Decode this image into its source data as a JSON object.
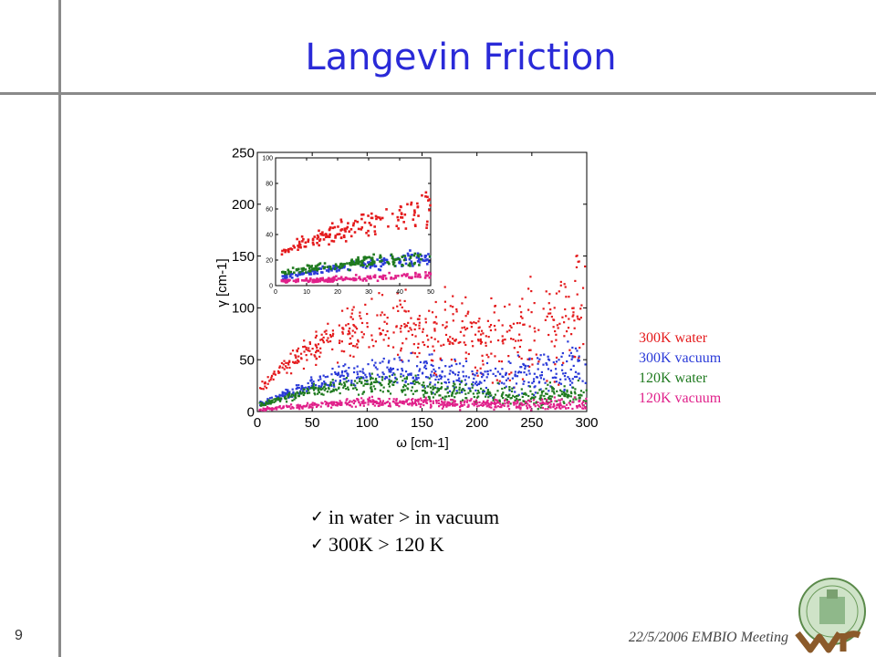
{
  "slide": {
    "title": "Langevin Friction",
    "page_number": "9",
    "footer": "22/5/2006 EMBIO Meeting",
    "logo_text": "iwr"
  },
  "legend": [
    {
      "label": "300K water",
      "color": "#e41a1c"
    },
    {
      "label": "300K vacuum",
      "color": "#2a3ad8"
    },
    {
      "label": "120K water",
      "color": "#1f7a1f"
    },
    {
      "label": "120K vacuum",
      "color": "#e0208a"
    }
  ],
  "bullets": [
    {
      "icon": "check-icon",
      "text": "in water > in vacuum"
    },
    {
      "icon": "check-icon",
      "text": "300K > 120 K"
    }
  ],
  "chart_data": [
    {
      "type": "scatter",
      "xlabel": "ω  [cm-1]",
      "ylabel": "γ  [cm-1]",
      "xlim": [
        0,
        300
      ],
      "ylim": [
        0,
        250
      ],
      "xticks": [
        "0",
        "50",
        "100",
        "150",
        "200",
        "250",
        "300"
      ],
      "yticks": [
        "0",
        "50",
        "100",
        "150",
        "200",
        "250"
      ],
      "series": [
        {
          "name": "300K water",
          "color": "#e41a1c",
          "trend_x": [
            5,
            25,
            50,
            75,
            100,
            125,
            150,
            175,
            200,
            225,
            250,
            275,
            300
          ],
          "trend_y": [
            25,
            45,
            60,
            72,
            82,
            85,
            83,
            78,
            70,
            68,
            78,
            88,
            95
          ]
        },
        {
          "name": "300K vacuum",
          "color": "#2a3ad8",
          "trend_x": [
            5,
            25,
            50,
            75,
            100,
            125,
            150,
            175,
            200,
            225,
            250,
            275,
            300
          ],
          "trend_y": [
            8,
            16,
            26,
            33,
            37,
            38,
            36,
            33,
            30,
            30,
            35,
            40,
            42
          ]
        },
        {
          "name": "120K water",
          "color": "#1f7a1f",
          "trend_x": [
            5,
            25,
            50,
            75,
            100,
            125,
            150,
            175,
            200,
            225,
            250,
            275,
            300
          ],
          "trend_y": [
            7,
            13,
            20,
            24,
            26,
            25,
            22,
            19,
            17,
            16,
            16,
            16,
            16
          ]
        },
        {
          "name": "120K vacuum",
          "color": "#e0208a",
          "trend_x": [
            5,
            25,
            50,
            75,
            100,
            125,
            150,
            175,
            200,
            225,
            250,
            275,
            300
          ],
          "trend_y": [
            2,
            4,
            6,
            8,
            9,
            9,
            9,
            8,
            7,
            7,
            7,
            7,
            7
          ]
        }
      ]
    },
    {
      "type": "scatter",
      "inset": true,
      "xlim": [
        0,
        50
      ],
      "ylim": [
        0,
        100
      ],
      "xticks": [
        "0",
        "10",
        "20",
        "30",
        "40",
        "50"
      ],
      "yticks": [
        "0",
        "20",
        "40",
        "60",
        "80",
        "100"
      ],
      "series": [
        {
          "name": "300K water",
          "color": "#e41a1c",
          "trend_x": [
            2,
            10,
            20,
            30,
            40,
            50
          ],
          "trend_y": [
            25,
            35,
            42,
            48,
            55,
            62
          ]
        },
        {
          "name": "300K vacuum",
          "color": "#2a3ad8",
          "trend_x": [
            2,
            10,
            20,
            30,
            40,
            50
          ],
          "trend_y": [
            6,
            10,
            14,
            17,
            20,
            22
          ]
        },
        {
          "name": "120K water",
          "color": "#1f7a1f",
          "trend_x": [
            2,
            10,
            20,
            30,
            40,
            50
          ],
          "trend_y": [
            10,
            13,
            16,
            19,
            21,
            22
          ]
        },
        {
          "name": "120K vacuum",
          "color": "#e0208a",
          "trend_x": [
            2,
            10,
            20,
            30,
            40,
            50
          ],
          "trend_y": [
            3,
            4,
            5,
            6,
            7,
            8
          ]
        }
      ]
    }
  ]
}
